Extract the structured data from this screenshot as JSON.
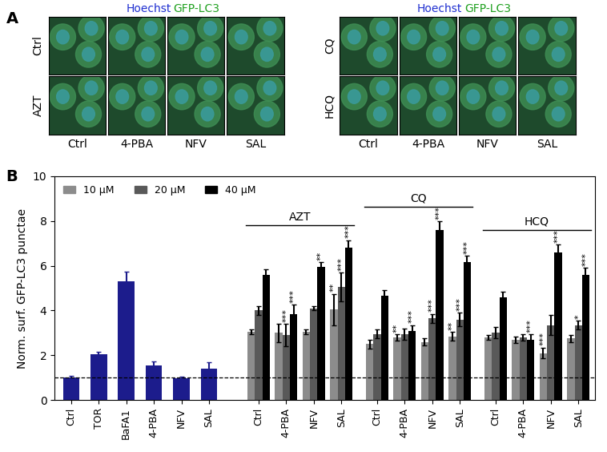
{
  "panel_a": {
    "letter": "A",
    "channels": [
      {
        "name": "Hoechst",
        "color": "#1f2fd0"
      },
      {
        "name": "GFP-LC3",
        "color": "#1fa01f"
      }
    ],
    "blocks": [
      {
        "rows": [
          "Ctrl",
          "AZT"
        ]
      },
      {
        "rows": [
          "CQ",
          "HCQ"
        ]
      }
    ],
    "columns": [
      "Ctrl",
      "4-PBA",
      "NFV",
      "SAL"
    ]
  },
  "chart_data": {
    "type": "bar",
    "letter": "B",
    "y_label": "Norm. surf. GFP-LC3 punctae",
    "ylim": [
      0,
      10
    ],
    "yticks": [
      0,
      2,
      4,
      6,
      8,
      10
    ],
    "legend": "upper left",
    "reference_line": 1,
    "controls": {
      "categories": [
        "Ctrl",
        "TOR",
        "BaFA1",
        "4-PBA",
        "NFV",
        "SAL"
      ],
      "values": [
        1.0,
        2.05,
        5.3,
        1.55,
        0.97,
        1.4
      ],
      "errors": [
        0.08,
        0.1,
        0.45,
        0.18,
        0.08,
        0.3
      ],
      "color": "#1c1c8c"
    },
    "groups": [
      {
        "name": "AZT",
        "categories": [
          "Ctrl",
          "4-PBA",
          "NFV",
          "SAL"
        ]
      },
      {
        "name": "CQ",
        "categories": [
          "Ctrl",
          "4-PBA",
          "NFV",
          "SAL"
        ]
      },
      {
        "name": "HCQ",
        "categories": [
          "Ctrl",
          "4-PBA",
          "NFV",
          "SAL"
        ]
      }
    ],
    "series": [
      {
        "name": "10 µM",
        "color": "#8c8c8c",
        "values": [
          3.05,
          3.0,
          3.05,
          4.05,
          2.5,
          2.8,
          2.6,
          2.85,
          2.8,
          2.7,
          2.1,
          2.75
        ],
        "errors": [
          0.1,
          0.4,
          0.1,
          0.7,
          0.2,
          0.15,
          0.15,
          0.2,
          0.1,
          0.15,
          0.25,
          0.15
        ],
        "stars": [
          null,
          null,
          null,
          "**",
          null,
          "**",
          null,
          "**",
          null,
          null,
          "***",
          null
        ]
      },
      {
        "name": "20 µM",
        "color": "#595959",
        "values": [
          4.0,
          2.9,
          4.1,
          5.05,
          2.95,
          2.95,
          3.65,
          3.6,
          3.0,
          2.8,
          3.35,
          3.35
        ],
        "errors": [
          0.2,
          0.5,
          0.1,
          0.65,
          0.2,
          0.25,
          0.2,
          0.3,
          0.25,
          0.15,
          0.45,
          0.2
        ],
        "stars": [
          null,
          "***",
          null,
          "***",
          null,
          null,
          "***",
          "***",
          null,
          null,
          null,
          "*"
        ]
      },
      {
        "name": "40 µM",
        "color": "#000000",
        "values": [
          5.6,
          3.85,
          5.95,
          6.8,
          4.65,
          3.1,
          7.6,
          6.15,
          4.6,
          2.7,
          6.6,
          5.6
        ],
        "errors": [
          0.25,
          0.4,
          0.2,
          0.35,
          0.25,
          0.25,
          0.4,
          0.3,
          0.25,
          0.25,
          0.35,
          0.3
        ],
        "stars": [
          null,
          "***",
          "**",
          "***",
          null,
          "***",
          "***",
          "***",
          null,
          "***",
          "***",
          "***"
        ]
      }
    ]
  }
}
